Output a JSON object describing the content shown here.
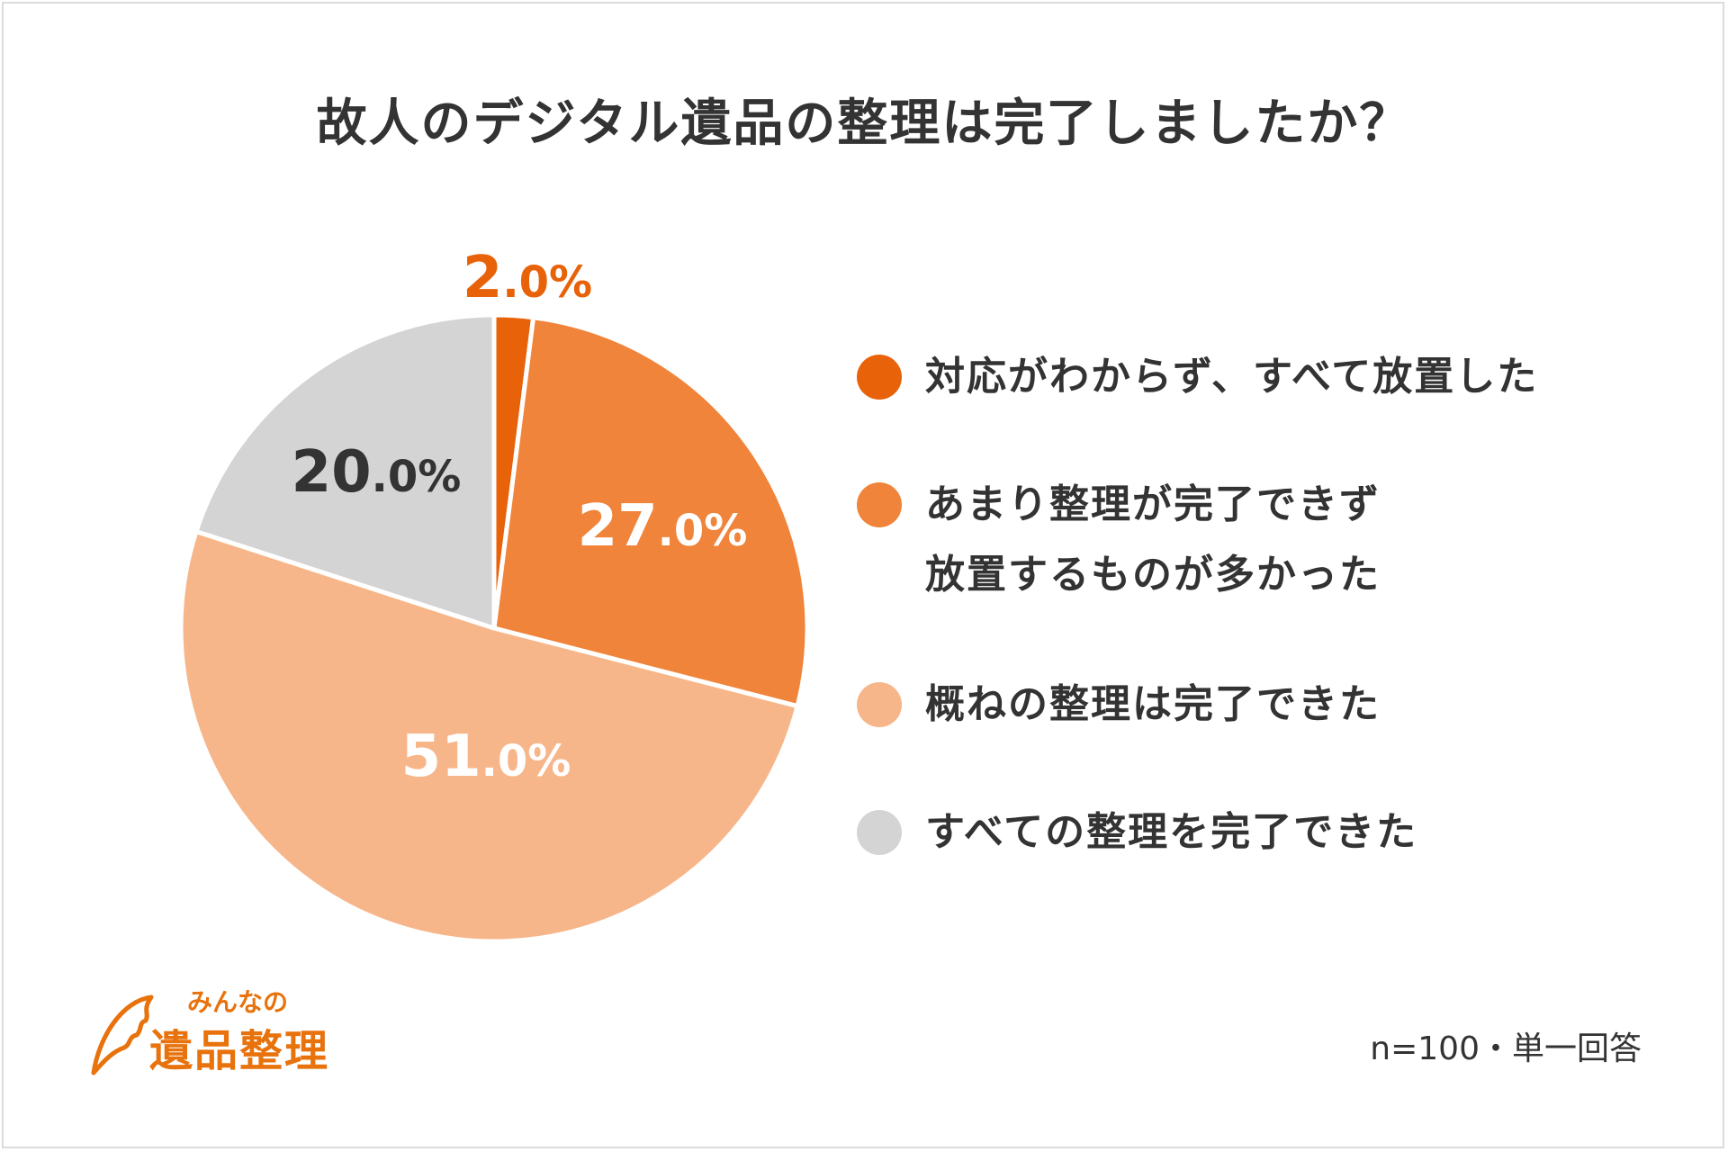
{
  "chart_data": {
    "type": "pie",
    "title": "故人のデジタル遺品の整理は完了しましたか？",
    "slices": [
      {
        "label": "対応がわからず、すべて放置した",
        "value": 2.0,
        "display_int": "2",
        "display_dec": ".0%",
        "color": "#e8620a",
        "text_color": "#e8620a"
      },
      {
        "label": "あまり整理が完了できず\n放置するものが多かった",
        "value": 27.0,
        "display_int": "27",
        "display_dec": ".0%",
        "color": "#f0843a",
        "text_color": "#ffffff"
      },
      {
        "label": "概ねの整理は完了できた",
        "value": 51.0,
        "display_int": "51",
        "display_dec": ".0%",
        "color": "#f7b68a",
        "text_color": "#ffffff"
      },
      {
        "label": "すべての整理を完了できた",
        "value": 20.0,
        "display_int": "20",
        "display_dec": ".0%",
        "color": "#d4d4d4",
        "text_color": "#333333"
      }
    ],
    "legend_position": "right"
  },
  "logo": {
    "top_text": "みんなの",
    "main_text": "遺品整理",
    "color": "#e8720c"
  },
  "footnote": "n=100・単一回答"
}
